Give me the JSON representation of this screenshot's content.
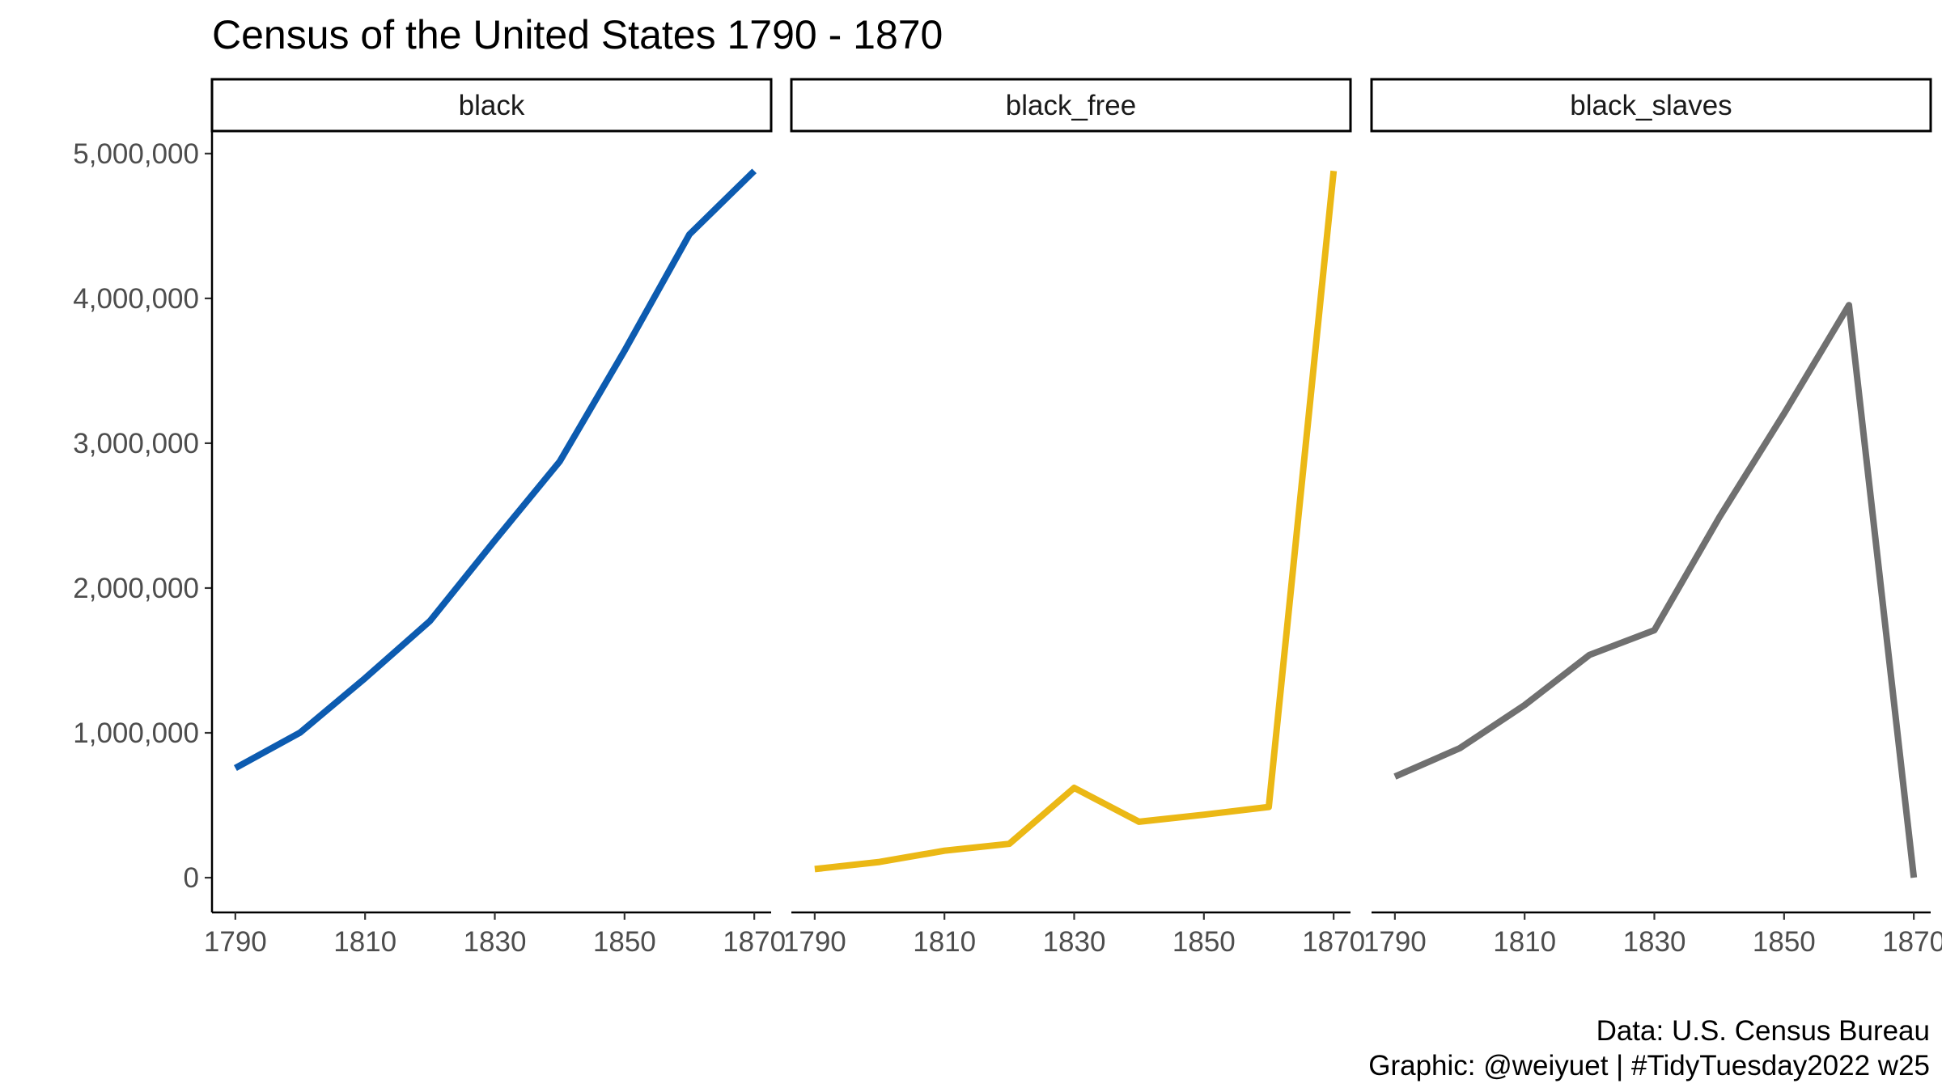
{
  "chart_data": {
    "type": "line",
    "title": "Census of the United States 1790 - 1870",
    "caption": [
      "Data: U.S. Census Bureau",
      "Graphic: @weiyuet | #TidyTuesday2022 w25"
    ],
    "xlabel": "",
    "ylabel": "",
    "x": [
      1790,
      1800,
      1810,
      1820,
      1830,
      1840,
      1850,
      1860,
      1870
    ],
    "xticks": [
      1790,
      1810,
      1830,
      1850,
      1870
    ],
    "xlim": [
      1786.4,
      1872.6
    ],
    "yticks": [
      0,
      1000000,
      2000000,
      3000000,
      4000000,
      5000000
    ],
    "ytick_labels": [
      "0",
      "1,000,000",
      "2,000,000",
      "3,000,000",
      "4,000,000",
      "5,000,000"
    ],
    "ylim": [
      -240000,
      5150000
    ],
    "grid": false,
    "legend": "none",
    "facets": [
      {
        "label": "black",
        "color": "#0C5BB0",
        "values": [
          757208,
          1002037,
          1377808,
          1771656,
          2328642,
          2873648,
          3638808,
          4441830,
          4880009
        ]
      },
      {
        "label": "black_free",
        "color": "#EBB815",
        "values": [
          59527,
          108435,
          186446,
          233634,
          620000,
          386293,
          434495,
          488070,
          4880009
        ]
      },
      {
        "label": "black_slaves",
        "color": "#707070",
        "values": [
          697681,
          893602,
          1191362,
          1538022,
          1708642,
          2487355,
          3204313,
          3953760,
          0
        ]
      }
    ]
  }
}
